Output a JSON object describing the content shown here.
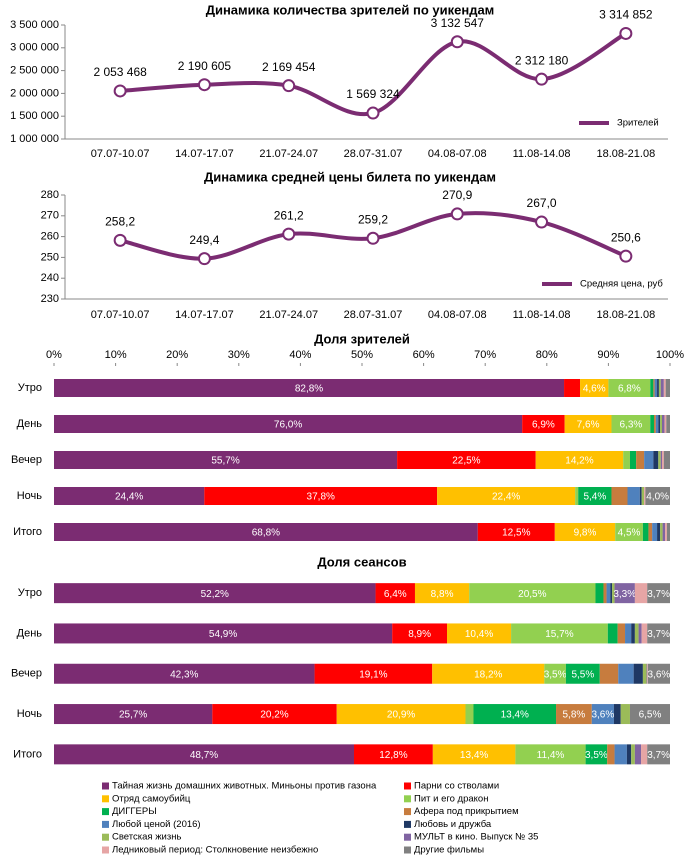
{
  "chart_data": [
    {
      "type": "line",
      "title": "Динамика количества зрителей по уикендам",
      "categories": [
        "07.07-10.07",
        "14.07-17.07",
        "21.07-24.07",
        "28.07-31.07",
        "04.08-07.08",
        "11.08-14.08",
        "18.08-21.08"
      ],
      "series": [
        {
          "name": "Зрителей",
          "color": "#7b2c72",
          "values": [
            2053468,
            2190605,
            2169454,
            1569324,
            3132547,
            2312180,
            3314852
          ],
          "value_labels": [
            "2 053 468",
            "2 190 605",
            "2 169 454",
            "1 569 324",
            "3 132 547",
            "2 312 180",
            "3 314 852"
          ]
        }
      ],
      "ylim": [
        1000000,
        3500000
      ],
      "yticks": [
        {
          "value": 1000000,
          "label": "1 000 000"
        },
        {
          "value": 1500000,
          "label": "1 500 000"
        },
        {
          "value": 2000000,
          "label": "2 000 000"
        },
        {
          "value": 2500000,
          "label": "2 500 000"
        },
        {
          "value": 3000000,
          "label": "3 000 000"
        },
        {
          "value": 3500000,
          "label": "3 500 000"
        }
      ],
      "grid": false,
      "legend": "lower right"
    },
    {
      "type": "line",
      "title": "Динамика средней цены билета по уикендам",
      "categories": [
        "07.07-10.07",
        "14.07-17.07",
        "21.07-24.07",
        "28.07-31.07",
        "04.08-07.08",
        "11.08-14.08",
        "18.08-21.08"
      ],
      "series": [
        {
          "name": "Средняя цена, руб",
          "color": "#7b2c72",
          "values": [
            258.2,
            249.4,
            261.2,
            259.2,
            270.9,
            267.0,
            250.6
          ],
          "value_labels": [
            "258,2",
            "249,4",
            "261,2",
            "259,2",
            "270,9",
            "267,0",
            "250,6"
          ]
        }
      ],
      "ylim": [
        230,
        280
      ],
      "yticks": [
        230,
        240,
        250,
        260,
        270,
        280
      ],
      "grid": false,
      "legend": "lower right"
    },
    {
      "type": "bar",
      "orientation": "horizontal",
      "stacked": true,
      "title": "Доля зрителей",
      "categories": [
        "Утро",
        "День",
        "Вечер",
        "Ночь",
        "Итого"
      ],
      "xlim": [
        0,
        100
      ],
      "xticks": [
        {
          "value": 0,
          "label": "0%"
        },
        {
          "value": 10,
          "label": "10%"
        },
        {
          "value": 20,
          "label": "20%"
        },
        {
          "value": 30,
          "label": "30%"
        },
        {
          "value": 40,
          "label": "40%"
        },
        {
          "value": 50,
          "label": "50%"
        },
        {
          "value": 60,
          "label": "60%"
        },
        {
          "value": 70,
          "label": "70%"
        },
        {
          "value": 80,
          "label": "80%"
        },
        {
          "value": 90,
          "label": "90%"
        },
        {
          "value": 100,
          "label": "100%"
        }
      ],
      "series": [
        {
          "name": "Тайная жизнь домашних животных. Миньоны против газона",
          "color": "#7b2c72",
          "values": [
            82.8,
            76.0,
            55.7,
            24.4,
            68.8
          ],
          "value_labels": [
            "82,8%",
            "76,0%",
            "55,7%",
            "24,4%",
            "68,8%"
          ]
        },
        {
          "name": "Парни со стволами",
          "color": "#ff0000",
          "values": [
            2.6,
            6.9,
            22.5,
            37.8,
            12.5
          ],
          "value_labels": [
            null,
            "6,9%",
            "22,5%",
            "37,8%",
            "12,5%"
          ]
        },
        {
          "name": "Отряд самоубийц",
          "color": "#ffc000",
          "values": [
            4.6,
            7.6,
            14.2,
            22.4,
            9.8
          ],
          "value_labels": [
            "4,6%",
            "7,6%",
            "14,2%",
            "22,4%",
            "9,8%"
          ]
        },
        {
          "name": "Пит и его дракон",
          "color": "#92d050",
          "values": [
            6.8,
            6.3,
            1.1,
            0.5,
            4.5
          ],
          "value_labels": [
            "6,8%",
            "6,3%",
            null,
            null,
            "4,5%"
          ]
        },
        {
          "name": "ДИГГЕРЫ",
          "color": "#00b050",
          "values": [
            0.5,
            0.6,
            1.0,
            5.4,
            0.9
          ],
          "value_labels": [
            null,
            null,
            null,
            "5,4%",
            null
          ]
        },
        {
          "name": "Афера под прикрытием",
          "color": "#c77c3e",
          "values": [
            0.2,
            0.3,
            1.3,
            2.6,
            0.6
          ]
        },
        {
          "name": "Любой ценой (2016)",
          "color": "#4f81bd",
          "values": [
            0.4,
            0.4,
            1.5,
            2.0,
            0.8
          ]
        },
        {
          "name": "Любовь и дружба",
          "color": "#1f3864",
          "values": [
            0.3,
            0.3,
            0.8,
            0.3,
            0.5
          ]
        },
        {
          "name": "Светская жизнь",
          "color": "#9bbb59",
          "values": [
            0.3,
            0.3,
            0.4,
            0.4,
            0.4
          ]
        },
        {
          "name": "МУЛЬТ в кино. Выпуск № 35",
          "color": "#8064a2",
          "values": [
            0.5,
            0.4,
            0.2,
            0,
            0.4
          ]
        },
        {
          "name": "Ледниковый период: Столкновение неизбежно",
          "color": "#e6a5a5",
          "values": [
            0.3,
            0.3,
            0.3,
            0.2,
            0.3
          ]
        },
        {
          "name": "Другие фильмы",
          "color": "#808080",
          "values": [
            0.7,
            0.6,
            1.0,
            4.0,
            0.5
          ],
          "value_labels": [
            null,
            null,
            null,
            "4,0%",
            null
          ]
        }
      ]
    },
    {
      "type": "bar",
      "orientation": "horizontal",
      "stacked": true,
      "title": "Доля сеансов",
      "categories": [
        "Утро",
        "День",
        "Вечер",
        "Ночь",
        "Итого"
      ],
      "xlim": [
        0,
        100
      ],
      "series": [
        {
          "name": "Тайная жизнь домашних животных. Миньоны против газона",
          "color": "#7b2c72",
          "values": [
            52.2,
            54.9,
            42.3,
            25.7,
            48.7
          ],
          "value_labels": [
            "52,2%",
            "54,9%",
            "42,3%",
            "25,7%",
            "48,7%"
          ]
        },
        {
          "name": "Парни со стволами",
          "color": "#ff0000",
          "values": [
            6.4,
            8.9,
            19.1,
            20.2,
            12.8
          ],
          "value_labels": [
            "6,4%",
            "8,9%",
            "19,1%",
            "20,2%",
            "12,8%"
          ]
        },
        {
          "name": "Отряд самоубийц",
          "color": "#ffc000",
          "values": [
            8.8,
            10.4,
            18.2,
            20.9,
            13.4
          ],
          "value_labels": [
            "8,8%",
            "10,4%",
            "18,2%",
            "20,9%",
            "13,4%"
          ]
        },
        {
          "name": "Пит и его дракон",
          "color": "#92d050",
          "values": [
            20.5,
            15.7,
            3.5,
            1.3,
            11.4
          ],
          "value_labels": [
            "20,5%",
            "15,7%",
            "3,5%",
            null,
            "11,4%"
          ]
        },
        {
          "name": "ДИГГЕРЫ",
          "color": "#00b050",
          "values": [
            1.3,
            1.6,
            5.5,
            13.4,
            3.5
          ],
          "value_labels": [
            null,
            null,
            "5,5%",
            "13,4%",
            "3,5%"
          ]
        },
        {
          "name": "Афера под прикрытием",
          "color": "#c77c3e",
          "values": [
            0.5,
            1.2,
            3.0,
            5.8,
            1.2
          ],
          "value_labels": [
            null,
            null,
            null,
            "5,8%",
            null
          ]
        },
        {
          "name": "Любой ценой (2016)",
          "color": "#4f81bd",
          "values": [
            0.6,
            1.0,
            2.5,
            3.6,
            2.0
          ],
          "value_labels": [
            null,
            null,
            null,
            "3,6%",
            null
          ]
        },
        {
          "name": "Любовь и дружба",
          "color": "#1f3864",
          "values": [
            0.3,
            0.6,
            1.5,
            1.1,
            0.7
          ]
        },
        {
          "name": "Светская жизнь",
          "color": "#9bbb59",
          "values": [
            0.4,
            0.6,
            0.6,
            1.5,
            0.6
          ]
        },
        {
          "name": "МУЛЬТ в кино. Выпуск № 35",
          "color": "#8064a2",
          "values": [
            3.3,
            0.5,
            0.1,
            0,
            1.0
          ],
          "value_labels": [
            "3,3%",
            null,
            null,
            null,
            null
          ]
        },
        {
          "name": "Ледниковый период: Столкновение неизбежно",
          "color": "#e6a5a5",
          "values": [
            2.0,
            0.9,
            0.1,
            0,
            1.0
          ]
        },
        {
          "name": "Другие фильмы",
          "color": "#808080",
          "values": [
            3.7,
            3.7,
            3.6,
            6.5,
            3.7
          ],
          "value_labels": [
            "3,7%",
            "3,7%",
            "3,6%",
            "6,5%",
            "3,7%"
          ]
        }
      ],
      "legend": "bottom"
    }
  ]
}
